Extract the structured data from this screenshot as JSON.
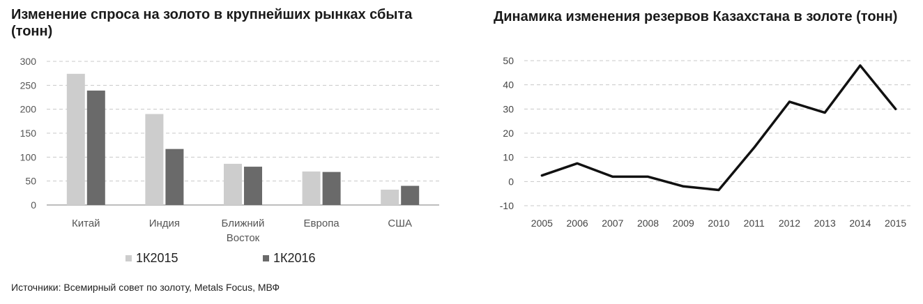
{
  "chart_data": [
    {
      "type": "bar",
      "title": "Изменение спроса на золото в крупнейших рынках сбыта (тонн)",
      "categories": [
        [
          "Китай"
        ],
        [
          "Индия"
        ],
        [
          "Ближний",
          "Восток"
        ],
        [
          "Европа"
        ],
        [
          "США"
        ]
      ],
      "series": [
        {
          "name": "1К2015",
          "values": [
            274,
            190,
            86,
            70,
            32
          ],
          "color": "#cdcdcd"
        },
        {
          "name": "1К2016",
          "values": [
            239,
            117,
            80,
            69,
            40
          ],
          "color": "#6a6a6a"
        }
      ],
      "ylim": [
        0,
        300
      ],
      "yticks": [
        0,
        50,
        100,
        150,
        200,
        250,
        300
      ],
      "grid": true,
      "legend": "bottom"
    },
    {
      "type": "line",
      "title": "Динамика изменения резервов Казахстана в золоте (тонн)",
      "x": [
        2005,
        2006,
        2007,
        2008,
        2009,
        2010,
        2011,
        2012,
        2013,
        2014,
        2015
      ],
      "series": [
        {
          "values": [
            2.5,
            7.5,
            2,
            2,
            -2,
            -3.5,
            14,
            33,
            28.5,
            48,
            30
          ],
          "color": "#111111"
        }
      ],
      "ylim": [
        -10,
        50
      ],
      "yticks": [
        -10,
        0,
        10,
        20,
        30,
        40,
        50
      ],
      "grid": true
    }
  ],
  "source": "Источники: Всемирный совет по золоту, Metals Focus, МВФ"
}
